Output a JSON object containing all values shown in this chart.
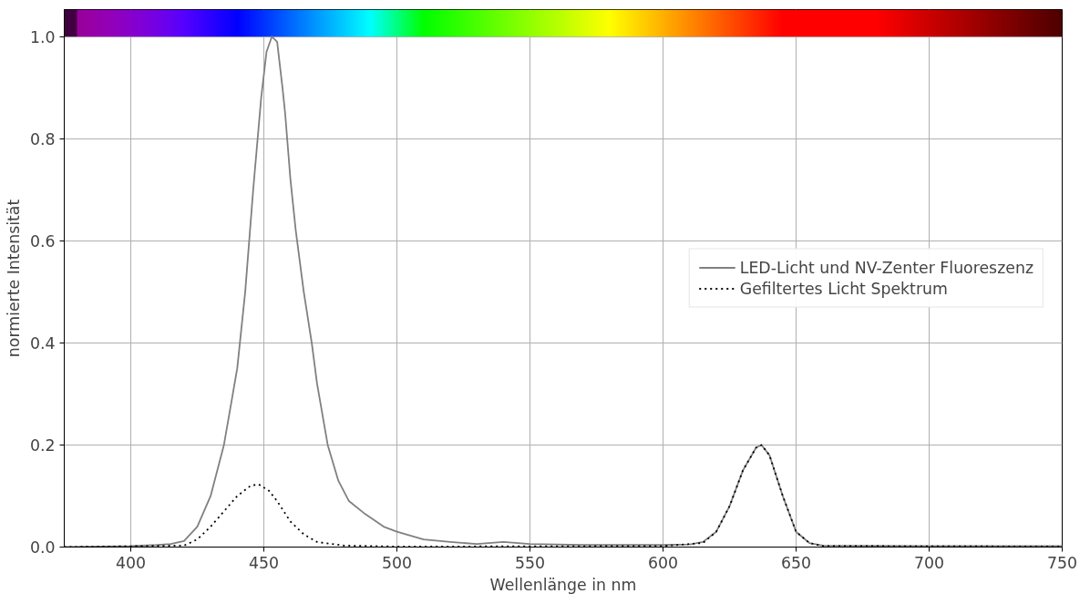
{
  "chart_data": {
    "type": "line",
    "xlabel": "Wellenlänge in nm",
    "ylabel": "normierte Intensität",
    "xlim": [
      375,
      750
    ],
    "ylim": [
      0,
      1.053
    ],
    "xticks": [
      400,
      450,
      500,
      550,
      600,
      650,
      700,
      750
    ],
    "yticks": [
      {
        "value": 0,
        "label": "0.0"
      },
      0.2,
      0.4,
      0.6,
      0.8,
      {
        "value": 1,
        "label": "1.0"
      }
    ],
    "bands": [
      {
        "axis": "y",
        "from": 1,
        "to": 1.053
      }
    ],
    "grid": true,
    "legend": "right",
    "marker": "none",
    "series": [
      {
        "name": "LED-Licht und NV-Zenter Fluoreszenz",
        "color": "#808080",
        "line_style": "solid",
        "x": [
          375,
          400,
          410,
          415,
          420,
          425,
          430,
          435,
          440,
          443,
          446,
          449,
          451,
          453,
          455,
          457,
          458,
          460,
          462,
          465,
          468,
          470,
          474,
          478,
          482,
          488,
          495,
          500,
          510,
          520,
          530,
          540,
          550,
          570,
          600,
          610,
          615,
          620,
          625,
          630,
          635,
          637,
          640,
          645,
          650,
          655,
          660,
          700,
          750
        ],
        "values": [
          0,
          0.002,
          0.004,
          0.006,
          0.012,
          0.04,
          0.1,
          0.2,
          0.35,
          0.5,
          0.7,
          0.88,
          0.97,
          1.0,
          0.99,
          0.9,
          0.85,
          0.72,
          0.62,
          0.5,
          0.4,
          0.32,
          0.2,
          0.13,
          0.09,
          0.065,
          0.04,
          0.03,
          0.015,
          0.01,
          0.006,
          0.01,
          0.006,
          0.004,
          0.004,
          0.005,
          0.01,
          0.03,
          0.08,
          0.15,
          0.195,
          0.2,
          0.18,
          0.1,
          0.03,
          0.008,
          0.003,
          0.002,
          0.002
        ]
      },
      {
        "name": "Gefiltertes Licht Spektrum",
        "color": "#000000",
        "line_style": "dotted",
        "x": [
          375,
          420,
          425,
          430,
          435,
          440,
          445,
          448,
          452,
          455,
          460,
          465,
          470,
          480,
          500,
          600,
          615,
          620,
          625,
          630,
          635,
          637,
          640,
          645,
          650,
          655,
          660,
          750
        ],
        "values": [
          0,
          0.003,
          0.015,
          0.04,
          0.07,
          0.1,
          0.12,
          0.123,
          0.11,
          0.09,
          0.05,
          0.025,
          0.01,
          0.003,
          0.001,
          0.002,
          0.008,
          0.03,
          0.08,
          0.15,
          0.195,
          0.2,
          0.18,
          0.1,
          0.03,
          0.008,
          0.002,
          0.001
        ]
      }
    ]
  }
}
